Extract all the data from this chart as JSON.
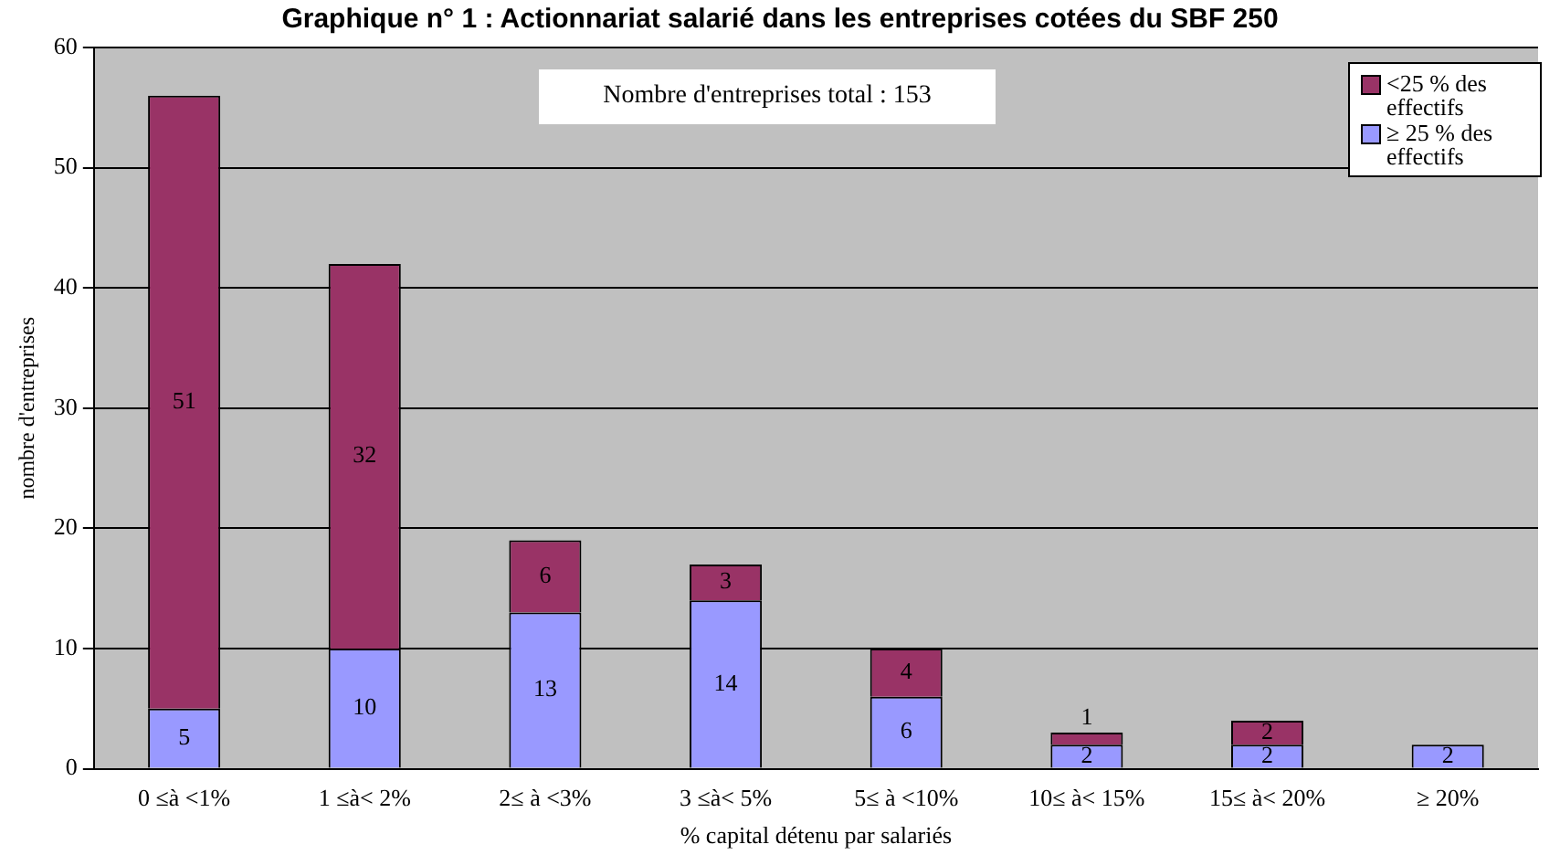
{
  "chart_data": {
    "type": "bar",
    "title": "Graphique n° 1 : Actionnariat salarié dans les entreprises cotées du SBF 250",
    "xlabel": "% capital détenu par salariés",
    "ylabel": "nombre d'entreprises",
    "categories": [
      "0 ≤à <1%",
      "1 ≤à< 2%",
      "2≤ à <3%",
      "3 ≤à< 5%",
      "5≤ à <10%",
      "10≤ à< 15%",
      "15≤ à< 20%",
      "≥ 20%"
    ],
    "series": [
      {
        "name": "≥ 25 % des effectifs",
        "color": "#9999ff",
        "values": [
          5,
          10,
          13,
          14,
          6,
          2,
          2,
          2
        ]
      },
      {
        "name": "<25 % des effectifs",
        "color": "#993366",
        "values": [
          51,
          32,
          6,
          3,
          4,
          1,
          2,
          null
        ]
      }
    ],
    "stacked": true,
    "ylim": [
      0,
      60
    ],
    "yticks": [
      0,
      10,
      20,
      30,
      40,
      50,
      60
    ],
    "grid": "y",
    "legend": "top right",
    "data_labels": true,
    "annotations": [
      "Nombre d'entreprises total : 153"
    ]
  }
}
